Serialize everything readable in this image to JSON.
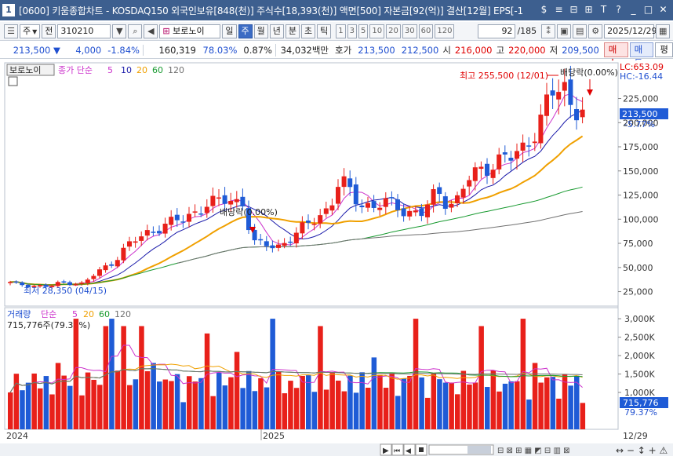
{
  "window": {
    "app_badge": "1",
    "title": "[0600] 키움종합차트 - KOSDAQ150 외국인보유[848(천)] 주식수[18,393(천)] 액면[500] 자본금[92(억)] 결산[12월] EPS[-1",
    "buttons": [
      "$",
      "≡",
      "⊟",
      "⊞",
      "T",
      "?",
      "_",
      "□",
      "✕"
    ]
  },
  "toolbar": {
    "period_select": "주",
    "prev_label": "전",
    "code": "310210",
    "stock_name": "보로노이",
    "periods": [
      "일",
      "주",
      "월",
      "년",
      "분",
      "초",
      "틱"
    ],
    "active_period": "주",
    "intervals": [
      "1",
      "3",
      "5",
      "10",
      "20",
      "30",
      "60",
      "120"
    ],
    "count": "92",
    "total": "/185",
    "date": "2025/12/29"
  },
  "quote": {
    "price": "213,500",
    "change": "4,000",
    "change_pct": "-1.84%",
    "volume": "160,319",
    "ratio": "78.03%",
    "turnover": "0.87%",
    "amount": "34,032백만",
    "ask_label": "호가",
    "ask1": "213,500",
    "ask2": "212,500",
    "open_label": "시",
    "open": "216,000",
    "high_label": "고",
    "high": "220,000",
    "low_label": "저",
    "low": "209,500",
    "buy_label": "매수",
    "sell_label": "매도",
    "eval_label": "평"
  },
  "chart_data": [
    {
      "type": "candlestick",
      "name": "보로노이",
      "legend": {
        "ma_title": "종가 단순",
        "ma_periods": [
          "5",
          "10",
          "20",
          "60",
          "120"
        ]
      },
      "y_ticks": [
        25000,
        50000,
        75000,
        100000,
        125000,
        150000,
        175000,
        200000,
        225000
      ],
      "y_tick_labels": [
        "25,000",
        "50,000",
        "75,000",
        "100,000",
        "125,000",
        "150,000",
        "175,000",
        "200,000",
        "225,000"
      ],
      "ylim": [
        10000,
        262000
      ],
      "current_price_label": "213,500",
      "current_change_label": "-5.77%",
      "lc_label": "LC:653.09",
      "hc_label": "HC:-16.44",
      "annotations": {
        "high": "최고 255,500 (12/01)",
        "low": "최저 28,350 (04/15)",
        "dividend": "배당락(0.00%)"
      },
      "x_axis_labels": [
        "2024",
        "2025",
        "12/29"
      ],
      "series_colors": {
        "up": "#e8201a",
        "down": "#1f5bd6",
        "ma5": "#cc33cc",
        "ma10": "#1a1aaa",
        "ma20": "#f0a000",
        "ma60": "#189a30",
        "ma120": "#707070"
      },
      "ma5_endpoints": [
        30000,
        213500
      ],
      "ma20_endpoints": [
        40000,
        185000
      ],
      "ma60_endpoints": [
        50000,
        133000
      ],
      "ma120_endpoints": [
        45000,
        94000
      ]
    },
    {
      "type": "bar",
      "name": "거래량",
      "legend": {
        "ma_title": "단순",
        "ma_periods": [
          "5",
          "20",
          "60",
          "120"
        ]
      },
      "current_label": "715,776주(79.37%)",
      "y_ticks": [
        1000000,
        1500000,
        2000000,
        2500000,
        3000000
      ],
      "y_tick_labels": [
        "1,000K",
        "1,500K",
        "2,000K",
        "2,500K",
        "3,000K"
      ],
      "ylim": [
        0,
        3300000
      ],
      "current_value_label": "715,776",
      "current_pct_label": "79.37%"
    }
  ]
}
